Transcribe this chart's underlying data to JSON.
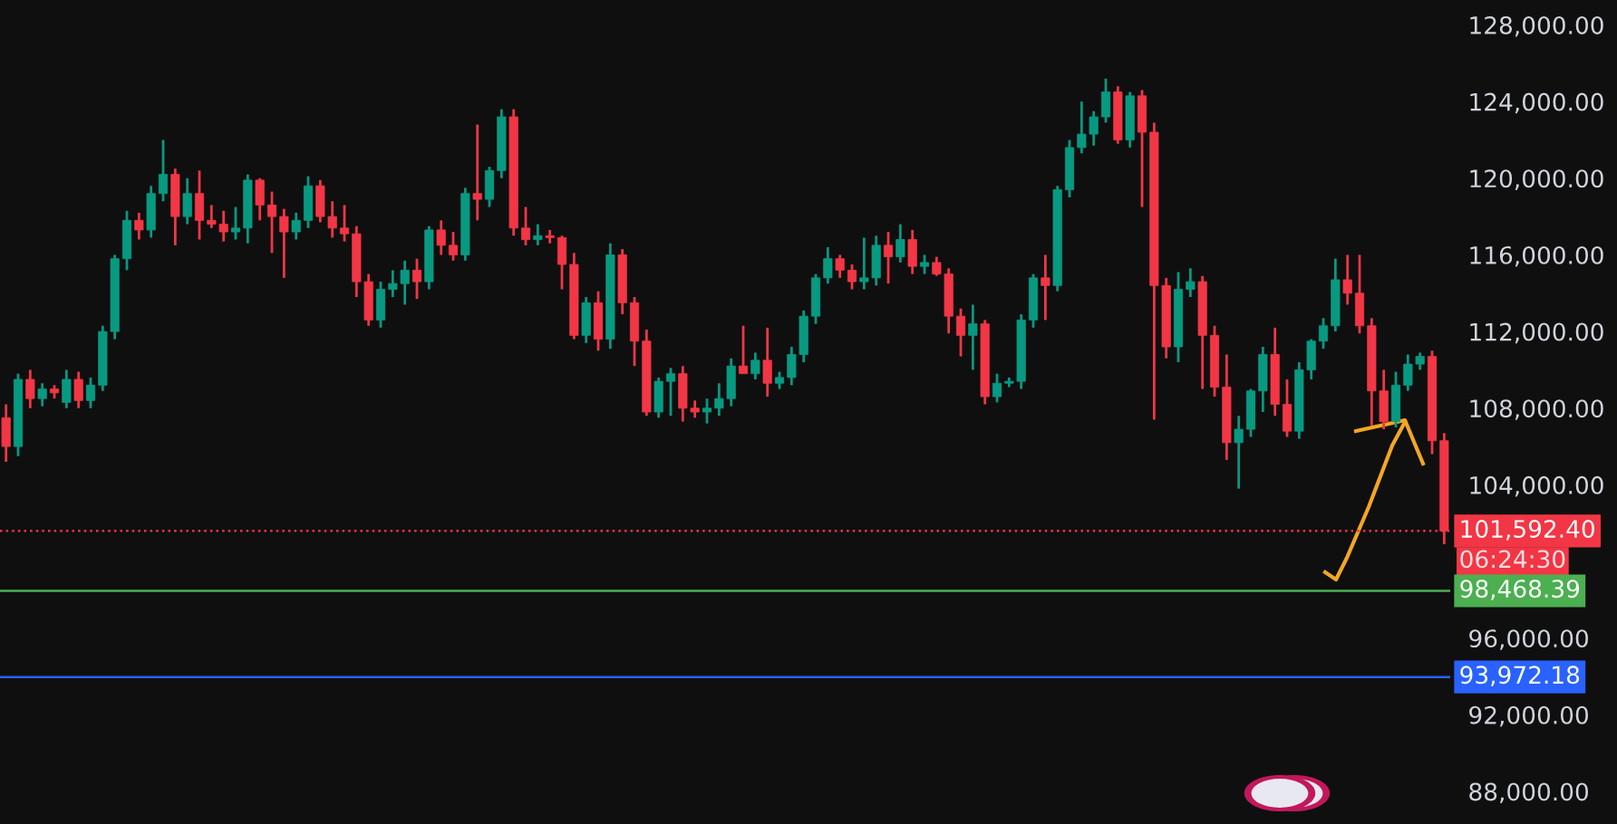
{
  "chart_data": {
    "type": "candlestick",
    "categories": [
      null,
      null,
      null,
      null,
      null,
      null,
      null,
      null,
      null,
      null,
      null,
      null,
      null,
      null,
      null,
      null,
      null,
      null,
      null,
      null,
      null,
      null,
      null,
      null,
      null,
      null,
      null,
      null,
      null,
      null,
      null,
      null,
      null,
      null,
      null,
      null,
      null,
      null,
      null,
      null,
      null,
      null,
      null,
      null,
      null,
      null,
      null,
      null,
      null,
      null,
      null,
      null,
      null,
      null,
      null,
      null,
      null,
      null,
      null,
      null,
      null,
      null,
      null,
      null,
      null,
      null,
      null,
      null,
      null,
      null,
      null,
      null,
      null,
      null,
      null,
      null,
      null,
      null,
      null,
      null,
      null,
      null,
      null,
      null,
      null,
      null,
      null,
      null,
      null,
      null,
      null,
      null,
      null,
      null,
      null,
      null,
      null,
      null,
      null,
      null,
      null,
      null,
      null,
      null,
      null,
      null,
      null,
      null,
      null,
      null,
      null,
      null,
      null,
      null,
      null,
      null,
      null,
      null,
      null,
      null
    ],
    "ohlc": [
      [
        107500,
        108200,
        105200,
        106000
      ],
      [
        106000,
        109800,
        105500,
        109500
      ],
      [
        109500,
        110000,
        108000,
        108500
      ],
      [
        108500,
        109300,
        108100,
        109000
      ],
      [
        109000,
        109200,
        108500,
        108800
      ],
      [
        108300,
        110000,
        108000,
        109500
      ],
      [
        109500,
        109900,
        108000,
        108400
      ],
      [
        108400,
        109600,
        108000,
        109200
      ],
      [
        109200,
        112300,
        108900,
        112000
      ],
      [
        112000,
        116000,
        111600,
        115800
      ],
      [
        115800,
        118300,
        115200,
        117800
      ],
      [
        117800,
        118200,
        116800,
        117300
      ],
      [
        117300,
        119600,
        116900,
        119200
      ],
      [
        119200,
        122000,
        118800,
        120200
      ],
      [
        120200,
        120500,
        116500,
        118000
      ],
      [
        118000,
        120000,
        117600,
        119200
      ],
      [
        119200,
        120400,
        116800,
        117800
      ],
      [
        117800,
        118600,
        117400,
        117600
      ],
      [
        117600,
        118300,
        116700,
        117200
      ],
      [
        117200,
        118500,
        116800,
        117400
      ],
      [
        117400,
        120200,
        116600,
        119900
      ],
      [
        119900,
        120000,
        117800,
        118600
      ],
      [
        118600,
        119300,
        116100,
        118000
      ],
      [
        118000,
        118400,
        114800,
        117200
      ],
      [
        117200,
        118200,
        116800,
        117800
      ],
      [
        117800,
        120100,
        117400,
        119600
      ],
      [
        119600,
        119900,
        117700,
        118000
      ],
      [
        118000,
        118800,
        116900,
        117400
      ],
      [
        117400,
        118600,
        116700,
        117100
      ],
      [
        117100,
        117500,
        113800,
        114600
      ],
      [
        114600,
        115000,
        112300,
        112600
      ],
      [
        112600,
        114600,
        112200,
        114200
      ],
      [
        114200,
        115200,
        113800,
        114500
      ],
      [
        114500,
        115700,
        113400,
        115200
      ],
      [
        115200,
        115800,
        113700,
        114600
      ],
      [
        114600,
        117500,
        114200,
        117300
      ],
      [
        117300,
        117800,
        116000,
        116500
      ],
      [
        116500,
        117200,
        115700,
        116000
      ],
      [
        116000,
        119500,
        115700,
        119200
      ],
      [
        119200,
        122800,
        117800,
        118900
      ],
      [
        118900,
        120600,
        118500,
        120400
      ],
      [
        120400,
        123600,
        120000,
        123200
      ],
      [
        123200,
        123600,
        117000,
        117400
      ],
      [
        117400,
        118500,
        116500,
        116800
      ],
      [
        116800,
        117600,
        116500,
        117000
      ],
      [
        117000,
        117300,
        116600,
        116900
      ],
      [
        116900,
        117000,
        114200,
        115500
      ],
      [
        115500,
        116100,
        111600,
        111800
      ],
      [
        111800,
        113800,
        111400,
        113500
      ],
      [
        113500,
        114100,
        111000,
        111600
      ],
      [
        111600,
        116600,
        111100,
        116000
      ],
      [
        116000,
        116300,
        112900,
        113500
      ],
      [
        113500,
        113800,
        110200,
        111500
      ],
      [
        111500,
        112100,
        107600,
        107800
      ],
      [
        107800,
        109600,
        107500,
        109400
      ],
      [
        109400,
        110100,
        107600,
        109800
      ],
      [
        109800,
        110200,
        107300,
        108000
      ],
      [
        108000,
        108400,
        107500,
        107800
      ],
      [
        107800,
        108500,
        107200,
        108000
      ],
      [
        108000,
        109300,
        107600,
        108500
      ],
      [
        108500,
        110600,
        108100,
        110200
      ],
      [
        110200,
        112300,
        109800,
        109800
      ],
      [
        109800,
        110900,
        109500,
        110500
      ],
      [
        110500,
        112200,
        108600,
        109300
      ],
      [
        109300,
        109900,
        109000,
        109600
      ],
      [
        109600,
        111200,
        109200,
        110800
      ],
      [
        110800,
        113100,
        110400,
        112800
      ],
      [
        112800,
        115000,
        112400,
        114800
      ],
      [
        114800,
        116400,
        114500,
        115800
      ],
      [
        115800,
        116000,
        114800,
        115200
      ],
      [
        115200,
        115500,
        114200,
        114600
      ],
      [
        114600,
        116900,
        114200,
        114800
      ],
      [
        114800,
        117000,
        114400,
        116500
      ],
      [
        116500,
        117200,
        114500,
        115900
      ],
      [
        115900,
        117600,
        115600,
        116800
      ],
      [
        116800,
        117300,
        115000,
        115400
      ],
      [
        115400,
        116000,
        115000,
        115600
      ],
      [
        115600,
        115900,
        114900,
        115000
      ],
      [
        115000,
        115300,
        111900,
        112800
      ],
      [
        112800,
        113200,
        110700,
        111800
      ],
      [
        111800,
        113400,
        110000,
        112400
      ],
      [
        112400,
        112600,
        108200,
        108600
      ],
      [
        108600,
        109800,
        108300,
        109300
      ],
      [
        109300,
        109600,
        109100,
        109400
      ],
      [
        109400,
        112900,
        109000,
        112600
      ],
      [
        112600,
        115000,
        112200,
        114800
      ],
      [
        114800,
        116000,
        112600,
        114400
      ],
      [
        114400,
        119600,
        114100,
        119400
      ],
      [
        119400,
        122000,
        119000,
        121600
      ],
      [
        121600,
        124000,
        121300,
        122300
      ],
      [
        122300,
        123500,
        121700,
        123200
      ],
      [
        123200,
        125200,
        122900,
        124500
      ],
      [
        124500,
        124800,
        121800,
        122000
      ],
      [
        122000,
        124500,
        121600,
        124300
      ],
      [
        124300,
        124600,
        118500,
        122400
      ],
      [
        122400,
        122900,
        107400,
        114400
      ],
      [
        114400,
        114800,
        110600,
        111200
      ],
      [
        111200,
        115100,
        110400,
        114200
      ],
      [
        114200,
        115300,
        113800,
        114600
      ],
      [
        114600,
        114900,
        109000,
        111800
      ],
      [
        111800,
        112300,
        108600,
        109100
      ],
      [
        109100,
        110800,
        105300,
        106200
      ],
      [
        106200,
        107600,
        103800,
        106900
      ],
      [
        106900,
        109000,
        106500,
        108900
      ],
      [
        108900,
        111200,
        107800,
        110800
      ],
      [
        110800,
        112200,
        107600,
        108200
      ],
      [
        108200,
        109500,
        106500,
        106800
      ],
      [
        106800,
        110400,
        106400,
        110000
      ],
      [
        110000,
        111600,
        109500,
        111500
      ],
      [
        111500,
        112700,
        111100,
        112300
      ],
      [
        112300,
        115800,
        112000,
        114700
      ],
      [
        114700,
        116000,
        113400,
        114000
      ],
      [
        114000,
        116000,
        111900,
        112300
      ],
      [
        112300,
        112700,
        107100,
        108900
      ],
      [
        108900,
        110000,
        106900,
        107300
      ],
      [
        107300,
        109900,
        107000,
        109200
      ],
      [
        109200,
        110800,
        108900,
        110300
      ],
      [
        110300,
        110900,
        110000,
        110700
      ],
      [
        110700,
        111000,
        105600,
        106300
      ],
      [
        106300,
        106700,
        100900,
        101592.4
      ]
    ],
    "ylim": [
      86300,
      129300
    ],
    "yticks": [
      {
        "value": 88000,
        "label": "88,000.00"
      },
      {
        "value": 92000,
        "label": "92,000.00"
      },
      {
        "value": 96000,
        "label": "96,000.00"
      },
      {
        "value": 104000,
        "label": "104,000.00"
      },
      {
        "value": 108000,
        "label": "108,000.00"
      },
      {
        "value": 112000,
        "label": "112,000.00"
      },
      {
        "value": 116000,
        "label": "116,000.00"
      },
      {
        "value": 120000,
        "label": "120,000.00"
      },
      {
        "value": 124000,
        "label": "124,000.00"
      },
      {
        "value": 128000,
        "label": "128,000.00"
      }
    ],
    "tick_labels": "y",
    "grid": false,
    "ref_lines": [
      {
        "axis": "y",
        "value": 101592.4,
        "label": "101,592.40",
        "color": "#f23645",
        "line_style": "dotted"
      },
      {
        "axis": "y",
        "value": 98468.39,
        "label": "98,468.39",
        "color": "#4caf50",
        "line_style": "solid"
      },
      {
        "axis": "y",
        "value": 93972.18,
        "label": "93,972.18",
        "color": "#2962ff",
        "line_style": "solid"
      }
    ],
    "annotations": [
      "06:24:30"
    ]
  }
}
